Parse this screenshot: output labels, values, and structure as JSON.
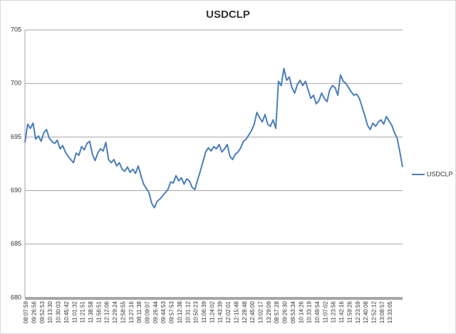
{
  "chart_data": {
    "type": "line",
    "title": "USDCLP",
    "categories": [
      "08:07:59",
      null,
      null,
      "09:26:56",
      null,
      null,
      "09:52:53",
      null,
      null,
      "10:13:30",
      null,
      null,
      "10:30:03",
      null,
      null,
      "10:45:42",
      null,
      null,
      "11:01:32",
      null,
      null,
      "11:21:51",
      null,
      null,
      "11:38:58",
      null,
      null,
      "11:56:51",
      null,
      null,
      "12:12:06",
      null,
      null,
      "12:29:24",
      null,
      null,
      "12:58:55",
      null,
      null,
      "13:27:16",
      null,
      null,
      "08:11:38",
      null,
      null,
      "09:09:07",
      null,
      null,
      "09:26:44",
      null,
      null,
      "09:44:53",
      null,
      null,
      "09:57:53",
      null,
      null,
      "10:12:38",
      null,
      null,
      "10:31:12",
      null,
      null,
      "10:50:23",
      null,
      null,
      "11:06:39",
      null,
      null,
      "11:24:02",
      null,
      null,
      "11:43:39",
      null,
      null,
      "12:02:01",
      null,
      null,
      "12:15:48",
      null,
      null,
      "12:28:48",
      null,
      null,
      "12:45:00",
      null,
      null,
      "13:02:17",
      null,
      null,
      "13:29:09",
      null,
      null,
      "08:57:28",
      null,
      null,
      "09:26:30",
      null,
      null,
      "09:53:34",
      null,
      null,
      "10:14:26",
      null,
      null,
      "10:33:19",
      null,
      null,
      "10:49:54",
      null,
      null,
      "11:07:02",
      null,
      null,
      "11:23:56",
      null,
      null,
      "11:42:16",
      null,
      null,
      "11:59:26",
      null,
      null,
      "12:23:59",
      null,
      null,
      "12:40:08",
      null,
      null,
      "12:52:12",
      null,
      null,
      "13:08:57",
      null,
      null,
      "13:33:05",
      null,
      null,
      null,
      null,
      null
    ],
    "series": [
      {
        "name": "USDCLP",
        "color": "#4a7ebb",
        "values": [
          694.5,
          696.2,
          695.8,
          696.3,
          694.8,
          695.1,
          694.6,
          695.4,
          695.7,
          694.9,
          694.6,
          694.4,
          694.7,
          693.9,
          694.2,
          693.6,
          693.2,
          692.9,
          692.6,
          693.5,
          693.3,
          694.1,
          693.8,
          694.4,
          694.6,
          693.4,
          692.8,
          693.5,
          693.9,
          693.7,
          694.5,
          692.9,
          692.6,
          692.9,
          692.3,
          692.6,
          692.0,
          691.8,
          692.2,
          691.7,
          692.0,
          691.6,
          692.3,
          691.4,
          690.6,
          690.2,
          689.8,
          688.8,
          688.4,
          689.0,
          689.2,
          689.5,
          689.8,
          690.1,
          690.8,
          690.7,
          691.4,
          690.9,
          691.2,
          690.6,
          691.1,
          690.9,
          690.3,
          690.1,
          691.0,
          691.8,
          692.7,
          693.6,
          694.0,
          693.7,
          694.1,
          693.9,
          694.3,
          693.6,
          693.9,
          694.3,
          693.2,
          692.9,
          693.4,
          693.6,
          694.0,
          694.6,
          694.8,
          695.2,
          695.6,
          696.2,
          697.3,
          696.8,
          696.4,
          697.1,
          696.2,
          696.0,
          696.6,
          695.8,
          700.2,
          699.8,
          701.4,
          700.3,
          700.6,
          699.6,
          699.1,
          699.9,
          700.3,
          699.8,
          700.2,
          699.4,
          698.6,
          698.9,
          698.1,
          698.4,
          699.1,
          698.6,
          698.3,
          699.4,
          699.8,
          699.6,
          698.9,
          700.8,
          700.2,
          700.0,
          699.6,
          699.2,
          698.9,
          699.0,
          698.6,
          697.8,
          697.0,
          696.1,
          695.7,
          696.3,
          696.0,
          696.4,
          696.6,
          696.2,
          696.9,
          696.5,
          696.1,
          695.4,
          694.9,
          693.6,
          692.2
        ]
      }
    ],
    "ylim": [
      680,
      705
    ],
    "yticks": [
      680,
      685,
      690,
      695,
      700,
      705
    ],
    "grid": true,
    "legend": "right"
  }
}
